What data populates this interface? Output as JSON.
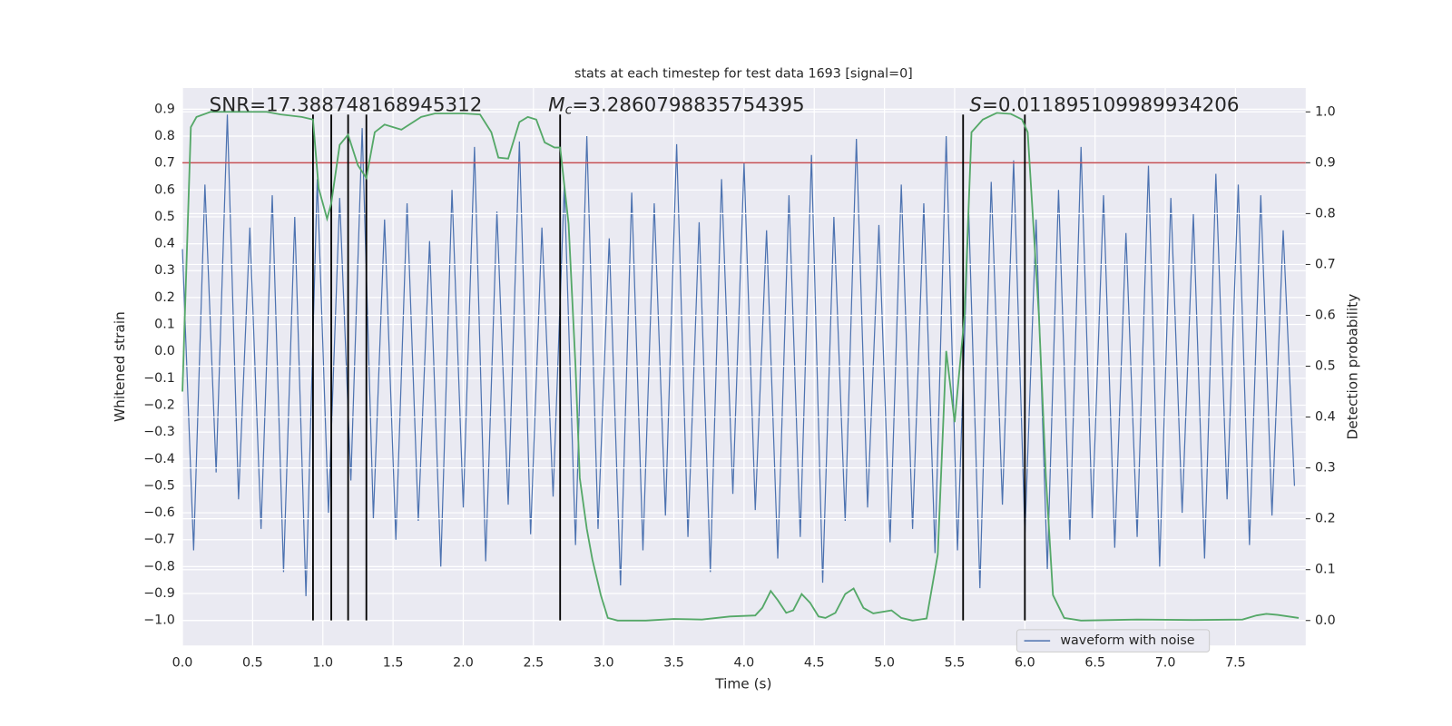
{
  "chart_data": {
    "type": "line",
    "title": "stats at each timestep for test data 1693 [signal=0]",
    "x_label": "Time (s)",
    "y_label": "Whitened strain",
    "y2_label": "Detection probability",
    "xlim": [
      0,
      8
    ],
    "ylim": [
      -1.093,
      0.979
    ],
    "y2lim": [
      -0.049,
      1.047
    ],
    "grid": true,
    "background": "#eaeaf2",
    "legend": "lower right",
    "xticks": [
      {
        "value": 0,
        "label": "0.0"
      },
      0.5,
      {
        "value": 1,
        "label": "1.0"
      },
      1.5,
      {
        "value": 2,
        "label": "2.0"
      },
      2.5,
      {
        "value": 3,
        "label": "3.0"
      },
      3.5,
      {
        "value": 4,
        "label": "4.0"
      },
      4.5,
      {
        "value": 5,
        "label": "5.0"
      },
      5.5,
      {
        "value": 6,
        "label": "6.0"
      },
      6.5,
      {
        "value": 7,
        "label": "7.0"
      },
      7.5
    ],
    "yticks": [
      {
        "value": -1,
        "label": "−1.0"
      },
      {
        "value": -0.9,
        "label": "−0.9"
      },
      {
        "value": -0.8,
        "label": "−0.8"
      },
      {
        "value": -0.7,
        "label": "−0.7"
      },
      {
        "value": -0.6,
        "label": "−0.6"
      },
      {
        "value": -0.5,
        "label": "−0.5"
      },
      {
        "value": -0.4,
        "label": "−0.4"
      },
      {
        "value": -0.3,
        "label": "−0.3"
      },
      {
        "value": -0.2,
        "label": "−0.2"
      },
      {
        "value": -0.1,
        "label": "−0.1"
      },
      {
        "value": 0,
        "label": "0.0"
      },
      0.1,
      0.2,
      0.3,
      0.4,
      0.5,
      0.6,
      0.7,
      0.8,
      0.9
    ],
    "y2ticks": [
      {
        "value": 0,
        "label": "0.0"
      },
      0.1,
      0.2,
      0.3,
      0.4,
      0.5,
      0.6,
      0.7,
      0.8,
      0.9,
      {
        "value": 1,
        "label": "1.0"
      }
    ],
    "series": [
      {
        "name": "waveform with noise",
        "color": "#4c72b0",
        "x": [
          0,
          0.08,
          0.16,
          0.24,
          0.32,
          0.4,
          0.48,
          0.56,
          0.64,
          0.72,
          0.8,
          0.88,
          0.96,
          1.04,
          1.12,
          1.2,
          1.28,
          1.36,
          1.44,
          1.52,
          1.6,
          1.68,
          1.76,
          1.84,
          1.92,
          2,
          2.08,
          2.16,
          2.24,
          2.32,
          2.4,
          2.48,
          2.56,
          2.64,
          2.72,
          2.8,
          2.88,
          2.96,
          3.04,
          3.12,
          3.2,
          3.28,
          3.36,
          3.44,
          3.52,
          3.6,
          3.68,
          3.76,
          3.84,
          3.92,
          4,
          4.08,
          4.16,
          4.24,
          4.32,
          4.4,
          4.48,
          4.56,
          4.64,
          4.72,
          4.8,
          4.88,
          4.96,
          5.04,
          5.12,
          5.2,
          5.28,
          5.36,
          5.44,
          5.52,
          5.6,
          5.68,
          5.76,
          5.84,
          5.92,
          6,
          6.08,
          6.16,
          6.24,
          6.32,
          6.4,
          6.48,
          6.56,
          6.64,
          6.72,
          6.8,
          6.88,
          6.96,
          7.04,
          7.12,
          7.2,
          7.28,
          7.36,
          7.44,
          7.52,
          7.6,
          7.68,
          7.76,
          7.84,
          7.92
        ],
        "values": [
          0.38,
          -0.74,
          0.62,
          -0.45,
          0.88,
          -0.55,
          0.46,
          -0.66,
          0.58,
          -0.82,
          0.5,
          -0.91,
          0.64,
          -0.6,
          0.57,
          -0.48,
          0.83,
          -0.62,
          0.49,
          -0.7,
          0.55,
          -0.63,
          0.41,
          -0.8,
          0.6,
          -0.58,
          0.76,
          -0.78,
          0.52,
          -0.57,
          0.78,
          -0.68,
          0.46,
          -0.54,
          0.62,
          -0.72,
          0.8,
          -0.66,
          0.42,
          -0.87,
          0.59,
          -0.74,
          0.55,
          -0.61,
          0.77,
          -0.69,
          0.48,
          -0.82,
          0.64,
          -0.53,
          0.7,
          -0.59,
          0.45,
          -0.77,
          0.58,
          -0.69,
          0.73,
          -0.86,
          0.5,
          -0.63,
          0.79,
          -0.58,
          0.47,
          -0.71,
          0.62,
          -0.66,
          0.55,
          -0.75,
          0.8,
          -0.74,
          0.52,
          -0.88,
          0.63,
          -0.57,
          0.71,
          -0.68,
          0.49,
          -0.81,
          0.6,
          -0.7,
          0.76,
          -0.62,
          0.58,
          -0.73,
          0.44,
          -0.69,
          0.69,
          -0.8,
          0.57,
          -0.6,
          0.51,
          -0.77,
          0.66,
          -0.55,
          0.62,
          -0.72,
          0.58,
          -0.61,
          0.45,
          -0.5
        ]
      },
      {
        "color": "#55a868",
        "axis": "y2",
        "x": [
          0,
          0.06,
          0.1,
          0.2,
          0.4,
          0.6,
          0.7,
          0.85,
          0.93,
          0.97,
          1.03,
          1.06,
          1.12,
          1.18,
          1.25,
          1.31,
          1.37,
          1.44,
          1.56,
          1.7,
          1.8,
          2,
          2.12,
          2.2,
          2.25,
          2.32,
          2.4,
          2.46,
          2.52,
          2.58,
          2.65,
          2.69,
          2.75,
          2.8,
          2.83,
          2.88,
          2.92,
          2.98,
          3.03,
          3.1,
          3.3,
          3.5,
          3.7,
          3.9,
          4.08,
          4.13,
          4.19,
          4.24,
          4.3,
          4.35,
          4.41,
          4.47,
          4.53,
          4.58,
          4.65,
          4.72,
          4.78,
          4.85,
          4.92,
          5.05,
          5.12,
          5.2,
          5.3,
          5.38,
          5.44,
          5.5,
          5.57,
          5.62,
          5.7,
          5.8,
          5.9,
          5.98,
          6.02,
          6.1,
          6.15,
          6.2,
          6.28,
          6.4,
          6.8,
          7.2,
          7.55,
          7.65,
          7.72,
          7.8,
          7.95
        ],
        "values": [
          0.45,
          0.97,
          0.99,
          1.0,
          1.0,
          1.0,
          0.995,
          0.99,
          0.985,
          0.85,
          0.79,
          0.82,
          0.935,
          0.955,
          0.895,
          0.87,
          0.96,
          0.975,
          0.965,
          0.99,
          0.997,
          0.997,
          0.995,
          0.96,
          0.91,
          0.908,
          0.98,
          0.99,
          0.985,
          0.94,
          0.93,
          0.93,
          0.78,
          0.5,
          0.28,
          0.18,
          0.12,
          0.05,
          0.005,
          0.0,
          0.0,
          0.003,
          0.002,
          0.008,
          0.01,
          0.025,
          0.058,
          0.04,
          0.015,
          0.02,
          0.052,
          0.035,
          0.008,
          0.005,
          0.015,
          0.052,
          0.063,
          0.025,
          0.014,
          0.02,
          0.005,
          0.0,
          0.004,
          0.13,
          0.53,
          0.39,
          0.6,
          0.96,
          0.985,
          0.998,
          0.996,
          0.985,
          0.96,
          0.6,
          0.28,
          0.05,
          0.005,
          0.0,
          0.002,
          0.001,
          0.002,
          0.01,
          0.013,
          0.011,
          0.005
        ]
      }
    ],
    "hline": {
      "value": 0.9,
      "axis": "y2",
      "color": "#c44e52"
    },
    "vlines": {
      "x": [
        0.93,
        1.06,
        1.18,
        1.31,
        2.69,
        5.56,
        6.0
      ],
      "ymin": -1,
      "ymax": 0.88,
      "color": "#000000"
    },
    "annotations": [
      {
        "text": "SNR=17.388748168945312"
      },
      {
        "symbol": "M",
        "subscript": "c",
        "text": "=3.2860798835754395"
      },
      {
        "symbol": "S",
        "text": "=0.011895109989934206"
      }
    ]
  }
}
